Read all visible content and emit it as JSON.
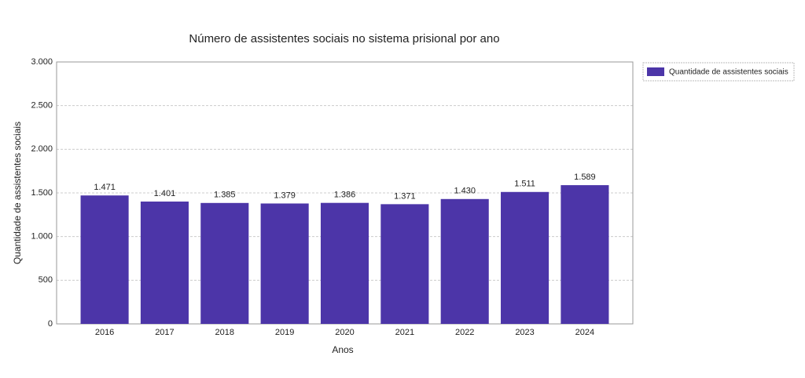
{
  "chart_data": {
    "type": "bar",
    "title": "Número de assistentes sociais no sistema prisional por ano",
    "x_label": "Anos",
    "y_label": "Quantidade de assistentes sociais",
    "categories": [
      "2016",
      "2017",
      "2018",
      "2019",
      "2020",
      "2021",
      "2022",
      "2023",
      "2024"
    ],
    "series": [
      {
        "name": "Quantidade de assistentes sociais",
        "color": "#4c35a8",
        "values": [
          1471,
          1401,
          1385,
          1379,
          1386,
          1371,
          1430,
          1511,
          1589
        ],
        "value_labels": [
          "1.471",
          "1.401",
          "1.385",
          "1.379",
          "1.386",
          "1.371",
          "1.430",
          "1.511",
          "1.589"
        ]
      }
    ],
    "ylim": [
      0,
      3000
    ],
    "yticks": [
      0,
      500,
      {
        "value": 1000,
        "label": "1.000"
      },
      {
        "value": 1500,
        "label": "1.500"
      },
      {
        "value": 2000,
        "label": "2.000"
      },
      {
        "value": 2500,
        "label": "2.500"
      },
      {
        "value": 3000,
        "label": "3.000"
      }
    ],
    "grid": true,
    "legend": "top-right"
  }
}
